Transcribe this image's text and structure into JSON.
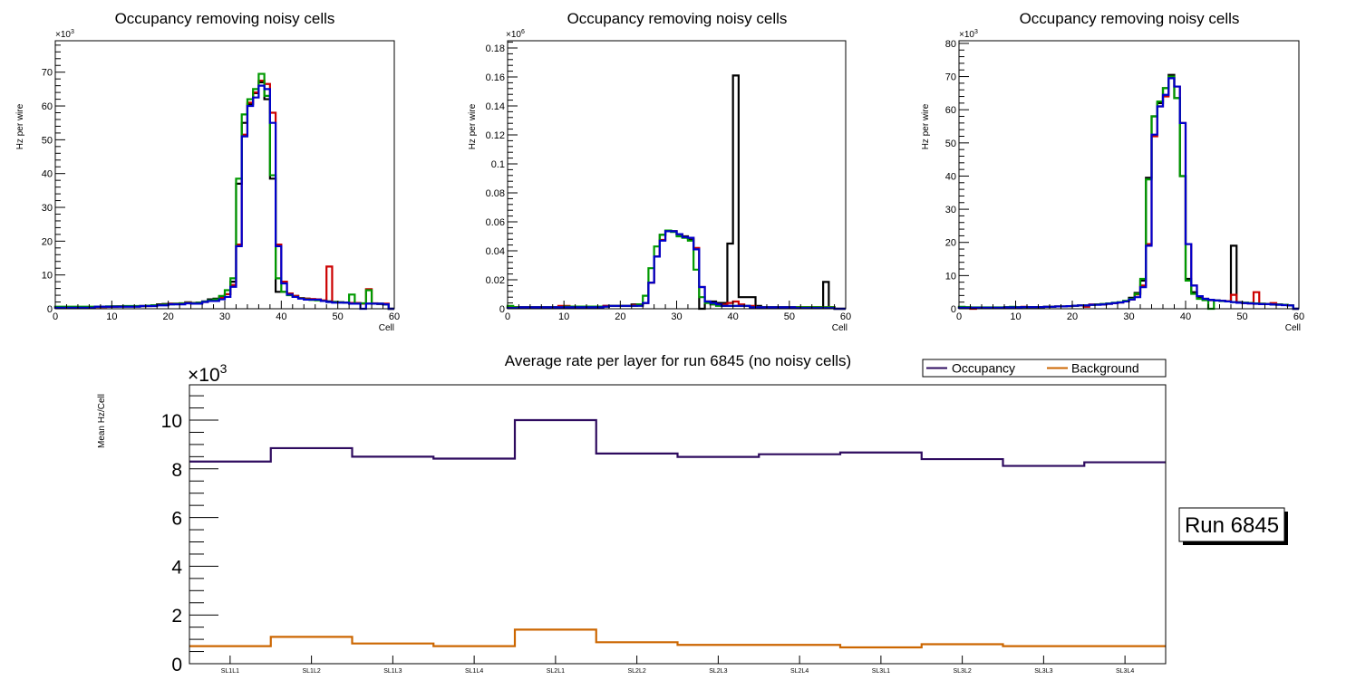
{
  "chart_data": [
    {
      "type": "line",
      "subtype": "step-histogram",
      "title": "Occupancy removing noisy cells",
      "xlabel": "Cell",
      "ylabel": "Hz per wire",
      "y_multiplier_label": "×10",
      "y_multiplier_exp": "3",
      "xlim": [
        0,
        60
      ],
      "ylim": [
        0,
        79.3
      ],
      "xticks": [
        0,
        10,
        20,
        30,
        40,
        50,
        60
      ],
      "yticks": [
        0,
        10,
        20,
        30,
        40,
        50,
        60,
        70
      ],
      "ytick_labels": [
        "0",
        "10",
        "20",
        "30",
        "40",
        "50",
        "60",
        "70"
      ],
      "grid": false,
      "series": [
        {
          "name": "black",
          "color": "#000000",
          "values": [
            0.5,
            0.5,
            0.5,
            0.5,
            0.5,
            0.5,
            0.5,
            0.6,
            0.6,
            0.6,
            0.7,
            0.7,
            0.7,
            0.7,
            0.7,
            0.8,
            0.9,
            1.0,
            1.3,
            1.4,
            1.5,
            1.5,
            1.6,
            1.9,
            1.7,
            1.8,
            2.2,
            2.8,
            3.0,
            3.5,
            4.3,
            8.0,
            37.0,
            55.0,
            60.5,
            63.8,
            67.0,
            62.0,
            38.5,
            5.0,
            5.0,
            4.5,
            3.8,
            3.2,
            3.0,
            2.8,
            2.6,
            2.4,
            2.2,
            2.0,
            1.9,
            1.8,
            1.6,
            1.6,
            1.5,
            1.5,
            1.5,
            1.4,
            1.3,
            0.0
          ]
        },
        {
          "name": "red",
          "color": "#cc0000",
          "values": [
            0.4,
            0.4,
            0.4,
            0.4,
            0.4,
            0.4,
            0.5,
            0.5,
            0.5,
            0.6,
            0.6,
            0.7,
            0.7,
            0.7,
            0.7,
            0.8,
            0.8,
            0.9,
            1.1,
            1.2,
            1.4,
            1.4,
            1.5,
            1.8,
            1.6,
            1.6,
            2.0,
            2.4,
            2.6,
            3.2,
            4.3,
            7.0,
            19.0,
            51.5,
            61.0,
            64.0,
            67.5,
            66.5,
            58.0,
            19.0,
            8.0,
            4.5,
            3.8,
            3.2,
            3.0,
            2.9,
            2.8,
            2.5,
            12.5,
            2.0,
            1.9,
            1.8,
            1.7,
            1.7,
            1.5,
            5.8,
            1.6,
            1.5,
            1.5,
            0.0
          ]
        },
        {
          "name": "green",
          "color": "#009900",
          "values": [
            0.6,
            0.6,
            0.6,
            0.6,
            0.6,
            0.6,
            0.6,
            0.6,
            0.6,
            0.7,
            0.7,
            0.7,
            0.8,
            0.8,
            0.8,
            0.8,
            0.9,
            1.0,
            1.1,
            1.2,
            1.3,
            1.4,
            1.5,
            1.7,
            1.6,
            1.7,
            2.1,
            2.5,
            2.8,
            3.8,
            5.5,
            9.0,
            38.5,
            57.5,
            62.0,
            65.0,
            69.5,
            63.0,
            39.5,
            9.0,
            5.0,
            4.0,
            3.5,
            3.1,
            2.8,
            2.6,
            2.5,
            2.3,
            2.0,
            2.0,
            1.9,
            1.8,
            4.2,
            1.5,
            1.6,
            5.5,
            1.5,
            1.5,
            1.3,
            0.0
          ]
        },
        {
          "name": "blue",
          "color": "#0000cc",
          "values": [
            0.3,
            0.3,
            0.3,
            0.3,
            0.3,
            0.3,
            0.3,
            0.6,
            0.6,
            0.6,
            0.6,
            0.6,
            0.6,
            0.6,
            0.6,
            0.8,
            0.8,
            0.8,
            1.0,
            1.0,
            1.3,
            1.3,
            1.3,
            1.6,
            1.5,
            1.5,
            2.0,
            2.3,
            2.3,
            2.8,
            3.5,
            6.5,
            18.5,
            51.0,
            60.0,
            62.5,
            66.0,
            65.0,
            55.0,
            18.5,
            7.5,
            4.2,
            3.5,
            3.0,
            2.7,
            2.7,
            2.7,
            2.3,
            2.0,
            1.8,
            1.8,
            1.8,
            1.5,
            1.5,
            0.0,
            1.5,
            1.5,
            1.5,
            1.3,
            0.0
          ]
        }
      ]
    },
    {
      "type": "line",
      "subtype": "step-histogram",
      "title": "Occupancy removing noisy cells",
      "xlabel": "Cell",
      "ylabel": "Hz per wire",
      "y_multiplier_label": "×10",
      "y_multiplier_exp": "6",
      "xlim": [
        0,
        60
      ],
      "ylim": [
        0,
        0.185
      ],
      "xticks": [
        0,
        10,
        20,
        30,
        40,
        50,
        60
      ],
      "yticks": [
        0,
        0.02,
        0.04,
        0.06,
        0.08,
        0.1,
        0.12,
        0.14,
        0.16,
        0.18
      ],
      "ytick_labels": [
        "0",
        "0.02",
        "0.04",
        "0.06",
        "0.08",
        "0.1",
        "0.12",
        "0.14",
        "0.16",
        "0.18"
      ],
      "grid": false,
      "series": [
        {
          "name": "black",
          "color": "#000000",
          "values": [
            0.001,
            0.001,
            0.001,
            0.001,
            0.001,
            0.001,
            0.001,
            0.001,
            0.001,
            0.001,
            0.0015,
            0.0015,
            0.0015,
            0.0015,
            0.0015,
            0.0015,
            0.0015,
            0.002,
            0.002,
            0.002,
            0.002,
            0.002,
            0.003,
            0.003,
            0.004,
            0.018,
            0.036,
            0.051,
            0.054,
            0.0535,
            0.0515,
            0.05,
            0.048,
            0.041,
            0.0,
            0.005,
            0.005,
            0.004,
            0.004,
            0.045,
            0.161,
            0.008,
            0.008,
            0.008,
            0.002,
            0.001,
            0.001,
            0.001,
            0.001,
            0.001,
            0.001,
            0.001,
            0.001,
            0.001,
            0.001,
            0.001,
            0.0185,
            0.001,
            0.0,
            0.0
          ]
        },
        {
          "name": "red",
          "color": "#cc0000",
          "values": [
            0.001,
            0.001,
            0.001,
            0.001,
            0.001,
            0.001,
            0.001,
            0.001,
            0.001,
            0.002,
            0.002,
            0.0015,
            0.0015,
            0.0015,
            0.0015,
            0.0015,
            0.0015,
            0.002,
            0.002,
            0.002,
            0.002,
            0.002,
            0.0025,
            0.003,
            0.004,
            0.018,
            0.036,
            0.0475,
            0.0535,
            0.0535,
            0.0515,
            0.0495,
            0.049,
            0.042,
            0.015,
            0.005,
            0.003,
            0.003,
            0.003,
            0.004,
            0.005,
            0.003,
            0.002,
            0.002,
            0.001,
            0.001,
            0.001,
            0.001,
            0.001,
            0.001,
            0.001,
            0.001,
            0.001,
            0.001,
            0.001,
            0.001,
            0.001,
            0.001,
            0.0,
            0.0
          ]
        },
        {
          "name": "green",
          "color": "#009900",
          "values": [
            0.002,
            0.001,
            0.001,
            0.001,
            0.001,
            0.001,
            0.001,
            0.001,
            0.001,
            0.001,
            0.0015,
            0.0015,
            0.0015,
            0.0015,
            0.0015,
            0.0015,
            0.0015,
            0.0015,
            0.002,
            0.002,
            0.002,
            0.002,
            0.002,
            0.003,
            0.009,
            0.028,
            0.043,
            0.051,
            0.054,
            0.053,
            0.05,
            0.049,
            0.047,
            0.027,
            0.008,
            0.004,
            0.003,
            0.002,
            0.002,
            0.002,
            0.002,
            0.002,
            0.002,
            0.001,
            0.001,
            0.001,
            0.001,
            0.001,
            0.001,
            0.001,
            0.001,
            0.001,
            0.001,
            0.001,
            0.001,
            0.001,
            0.001,
            0.001,
            0.0,
            0.0
          ]
        },
        {
          "name": "blue",
          "color": "#0000cc",
          "values": [
            0.0005,
            0.0005,
            0.001,
            0.001,
            0.001,
            0.001,
            0.001,
            0.001,
            0.001,
            0.001,
            0.001,
            0.001,
            0.001,
            0.001,
            0.001,
            0.001,
            0.001,
            0.0015,
            0.002,
            0.002,
            0.002,
            0.002,
            0.002,
            0.002,
            0.004,
            0.018,
            0.036,
            0.047,
            0.0535,
            0.0535,
            0.0515,
            0.0495,
            0.049,
            0.041,
            0.015,
            0.005,
            0.004,
            0.003,
            0.002,
            0.002,
            0.002,
            0.002,
            0.002,
            0.001,
            0.001,
            0.001,
            0.001,
            0.001,
            0.001,
            0.001,
            0.001,
            0.0005,
            0.0005,
            0.0005,
            0.0005,
            0.0005,
            0.0005,
            0.0005,
            0.0,
            0.0
          ]
        }
      ]
    },
    {
      "type": "line",
      "subtype": "step-histogram",
      "title": "Occupancy removing noisy cells",
      "xlabel": "Cell",
      "ylabel": "Hz per wire",
      "y_multiplier_label": "×10",
      "y_multiplier_exp": "3",
      "xlim": [
        0,
        60
      ],
      "ylim": [
        0,
        80.8
      ],
      "xticks": [
        0,
        10,
        20,
        30,
        40,
        50,
        60
      ],
      "yticks": [
        0,
        10,
        20,
        30,
        40,
        50,
        60,
        70,
        80
      ],
      "ytick_labels": [
        "0",
        "10",
        "20",
        "30",
        "40",
        "50",
        "60",
        "70",
        "80"
      ],
      "grid": false,
      "series": [
        {
          "name": "black",
          "color": "#000000",
          "values": [
            0.5,
            0.3,
            0.3,
            0.3,
            0.3,
            0.3,
            0.3,
            0.3,
            0.4,
            0.4,
            0.4,
            0.5,
            0.5,
            0.5,
            0.5,
            0.6,
            0.6,
            0.7,
            0.7,
            0.8,
            0.9,
            1.0,
            1.0,
            1.2,
            1.3,
            1.4,
            1.5,
            1.7,
            1.9,
            2.3,
            3.3,
            4.8,
            8.5,
            39.5,
            58.0,
            62.0,
            66.5,
            70.5,
            63.5,
            40.0,
            9.0,
            5.0,
            3.5,
            2.8,
            2.6,
            2.5,
            2.4,
            2.3,
            19.0,
            2.0,
            1.8,
            1.7,
            1.6,
            1.5,
            1.4,
            1.3,
            1.3,
            1.2,
            1.0,
            0.0
          ]
        },
        {
          "name": "red",
          "color": "#cc0000",
          "values": [
            0.4,
            0.4,
            0.0,
            0.3,
            0.3,
            0.3,
            0.3,
            0.3,
            0.4,
            0.4,
            0.4,
            0.6,
            0.5,
            0.5,
            0.5,
            0.6,
            0.6,
            0.7,
            0.7,
            0.8,
            0.9,
            1.0,
            0.6,
            1.3,
            1.3,
            1.3,
            1.5,
            1.7,
            1.9,
            2.3,
            2.8,
            4.3,
            7.0,
            19.5,
            52.0,
            61.0,
            64.0,
            69.5,
            67.0,
            56.0,
            19.5,
            7.0,
            3.8,
            3.0,
            2.7,
            2.5,
            2.4,
            2.3,
            4.2,
            1.8,
            1.7,
            1.6,
            5.0,
            1.5,
            1.4,
            1.7,
            1.3,
            1.2,
            1.0,
            0.0
          ]
        },
        {
          "name": "green",
          "color": "#009900",
          "values": [
            0.6,
            0.5,
            0.4,
            0.4,
            0.4,
            0.4,
            0.4,
            0.4,
            0.5,
            0.6,
            0.5,
            0.5,
            0.5,
            0.5,
            0.5,
            0.6,
            0.6,
            0.7,
            0.7,
            0.8,
            0.9,
            1.0,
            1.0,
            1.2,
            1.3,
            1.4,
            1.6,
            1.8,
            2.0,
            2.4,
            3.0,
            4.5,
            9.0,
            39.0,
            58.0,
            62.5,
            66.5,
            70.0,
            63.5,
            40.0,
            8.5,
            4.5,
            3.0,
            2.6,
            0.0,
            2.5,
            2.3,
            2.2,
            2.0,
            1.8,
            1.8,
            1.7,
            1.6,
            1.5,
            1.4,
            1.3,
            1.3,
            1.2,
            1.0,
            0.0
          ]
        },
        {
          "name": "blue",
          "color": "#0000cc",
          "values": [
            0.3,
            0.3,
            0.3,
            0.3,
            0.3,
            0.3,
            0.3,
            0.3,
            0.4,
            0.4,
            0.4,
            0.5,
            0.5,
            0.5,
            0.5,
            0.6,
            0.6,
            0.7,
            0.7,
            0.8,
            0.9,
            1.0,
            1.0,
            1.2,
            1.2,
            1.3,
            1.5,
            1.7,
            1.9,
            2.2,
            2.8,
            3.5,
            6.5,
            19.0,
            52.5,
            61.0,
            64.5,
            69.5,
            67.0,
            56.0,
            19.5,
            7.0,
            3.8,
            3.0,
            2.7,
            2.5,
            2.4,
            2.2,
            2.0,
            1.8,
            1.7,
            1.6,
            1.5,
            1.4,
            1.4,
            1.3,
            1.2,
            1.1,
            1.0,
            0.0
          ]
        }
      ]
    },
    {
      "type": "line",
      "subtype": "step-histogram",
      "title": "Average rate per layer for run 6845 (no noisy cells)",
      "xlabel": "",
      "ylabel": "Mean Hz/Cell",
      "y_multiplier_label": "×10",
      "y_multiplier_exp": "3",
      "ylim": [
        0,
        11.45
      ],
      "yticks": [
        0,
        2,
        4,
        6,
        8,
        10
      ],
      "ytick_labels": [
        "0",
        "2",
        "4",
        "6",
        "8",
        "10"
      ],
      "categories": [
        "SL1L1",
        "SL1L2",
        "SL1L3",
        "SL1L4",
        "SL2L1",
        "SL2L2",
        "SL2L3",
        "SL2L4",
        "SL3L1",
        "SL3L2",
        "SL3L3",
        "SL3L4"
      ],
      "grid": false,
      "legend_position": "top-right",
      "series": [
        {
          "name": "Occupancy",
          "color": "#2e0b5f",
          "values": [
            8.3,
            8.85,
            8.5,
            8.42,
            10.0,
            8.63,
            8.49,
            8.6,
            8.67,
            8.4,
            8.12,
            8.27
          ]
        },
        {
          "name": "Background",
          "color": "#cc6600",
          "values": [
            0.72,
            1.1,
            0.83,
            0.72,
            1.4,
            0.88,
            0.77,
            0.77,
            0.67,
            0.8,
            0.72,
            0.72
          ]
        }
      ]
    }
  ],
  "legend": {
    "items": [
      {
        "label": "Occupancy"
      },
      {
        "label": "Background"
      }
    ]
  },
  "run_label": "Run 6845"
}
